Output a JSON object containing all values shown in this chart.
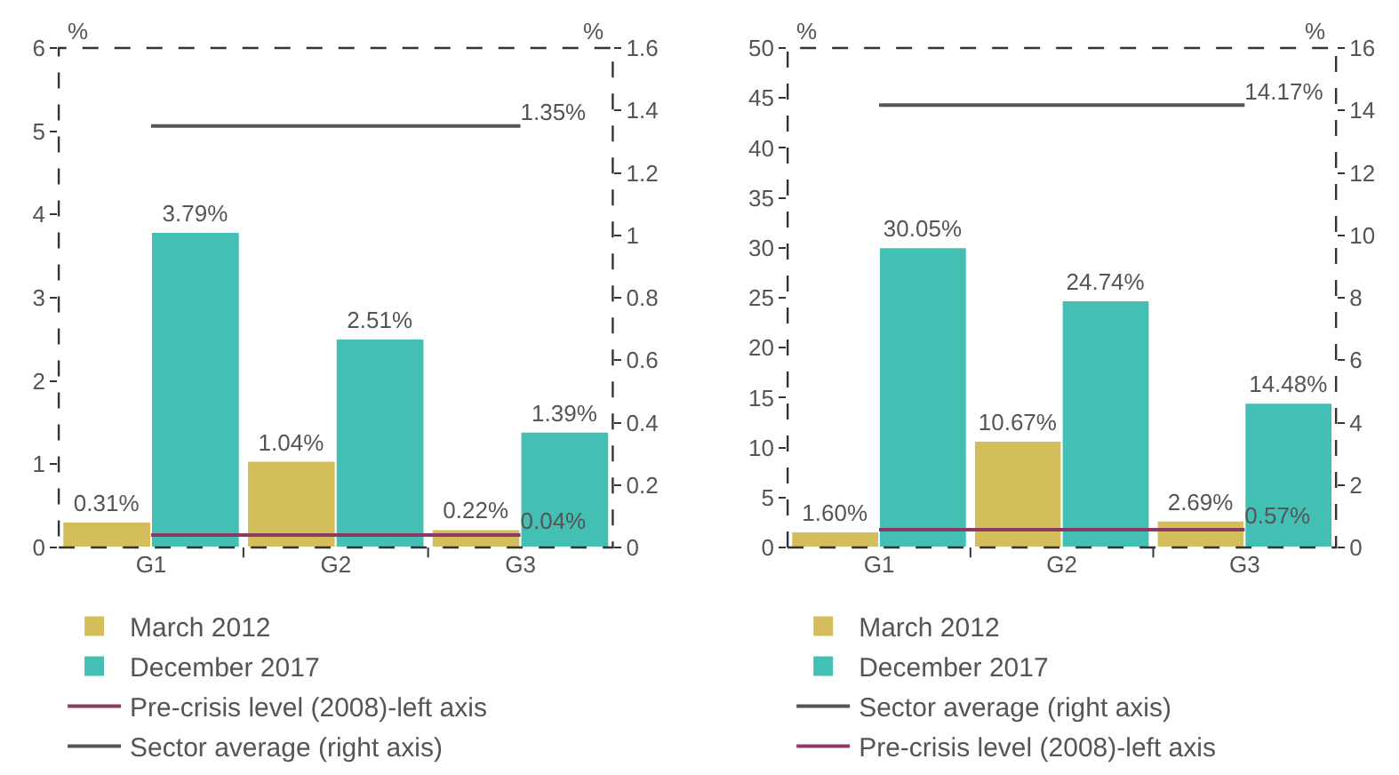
{
  "chart_data": [
    {
      "type": "bar",
      "categories": [
        "G1",
        "G2",
        "G3"
      ],
      "ylabel": "%",
      "y2label": "%",
      "ylim": [
        0,
        6
      ],
      "yticks": [
        0,
        1,
        2,
        3,
        4,
        5,
        6
      ],
      "y2lim": [
        0,
        1.6
      ],
      "y2ticks": [
        0,
        0.2,
        0.4,
        0.6,
        0.8,
        1,
        1.2,
        1.4,
        1.6
      ],
      "legend": "bottom",
      "marker": "none",
      "series": [
        {
          "name": "March 2012",
          "color": "#d4be5c",
          "values": [
            0.31,
            1.04,
            0.22
          ],
          "value_labels": [
            "0.31%",
            "1.04%",
            "0.22%"
          ]
        },
        {
          "name": "December 2017",
          "color": "#44bfb4",
          "values": [
            3.79,
            2.51,
            1.39
          ],
          "value_labels": [
            "3.79%",
            "2.51%",
            "1.39%"
          ]
        },
        {
          "name": "Pre-crisis level (2008)-left axis",
          "type": "line",
          "axis": "y2",
          "color": "#8b3a62",
          "values": [
            0.04,
            0.04,
            0.04
          ],
          "value_labels": [
            null,
            null,
            "0.04%"
          ]
        },
        {
          "name": "Sector average (right axis)",
          "type": "line",
          "axis": "y2",
          "color": "#555555",
          "values": [
            1.35,
            1.35,
            1.35
          ],
          "value_labels": [
            null,
            null,
            "1.35%"
          ]
        }
      ]
    },
    {
      "type": "bar",
      "categories": [
        "G1",
        "G2",
        "G3"
      ],
      "ylabel": "%",
      "y2label": "%",
      "ylim": [
        0,
        50
      ],
      "yticks": [
        0,
        5,
        10,
        15,
        20,
        25,
        30,
        35,
        40,
        45,
        50
      ],
      "y2lim": [
        0,
        16
      ],
      "y2ticks": [
        0,
        2,
        4,
        6,
        8,
        10,
        12,
        14,
        16
      ],
      "legend": "bottom",
      "marker": "none",
      "series": [
        {
          "name": "March 2012",
          "color": "#d4be5c",
          "values": [
            1.6,
            10.67,
            2.69
          ],
          "value_labels": [
            "1.60%",
            "10.67%",
            "2.69%"
          ]
        },
        {
          "name": "December 2017",
          "color": "#44bfb4",
          "values": [
            30.05,
            24.74,
            14.48
          ],
          "value_labels": [
            "30.05%",
            "24.74%",
            "14.48%"
          ]
        },
        {
          "name": "Sector average (right axis)",
          "type": "line",
          "axis": "y2",
          "color": "#555555",
          "values": [
            14.17,
            14.17,
            14.17
          ],
          "value_labels": [
            null,
            null,
            "14.17%"
          ]
        },
        {
          "name": "Pre-crisis level (2008)-left axis",
          "type": "line",
          "axis": "y2",
          "color": "#8b3a62",
          "values": [
            0.57,
            0.57,
            0.57
          ],
          "value_labels": [
            null,
            null,
            "0.57%"
          ]
        }
      ]
    }
  ]
}
